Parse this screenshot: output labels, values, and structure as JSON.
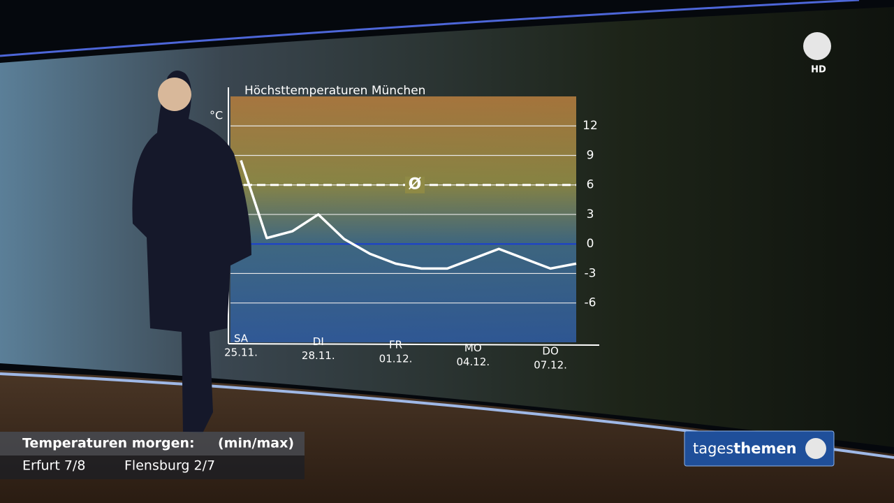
{
  "chart_data": {
    "type": "line",
    "title": "Höchsttemperaturen München",
    "y_unit": "°C",
    "weekdays": [
      "SA",
      null,
      null,
      "DI",
      null,
      null,
      "FR",
      null,
      null,
      "MO",
      null,
      null,
      "DO",
      null
    ],
    "categories": [
      "25.11.",
      null,
      null,
      "28.11.",
      null,
      null,
      "01.12.",
      null,
      null,
      "04.12.",
      null,
      null,
      "07.12.",
      null
    ],
    "values": [
      8.5,
      0.6,
      1.3,
      3,
      0.5,
      -1,
      -2,
      -2.5,
      -2.5,
      -1.5,
      -0.5,
      -1.5,
      -2.5,
      -2
    ],
    "color": "#ffffff",
    "ylim": [
      -10,
      15
    ],
    "yticks": [
      -6,
      -3,
      0,
      3,
      6,
      9,
      12
    ],
    "grid": true,
    "mean": 6,
    "mean_label": "Ø"
  },
  "logo": {
    "label": "HD"
  },
  "ticker": {
    "heading": "Temperaturen morgen:",
    "note": "(min/max)",
    "items": [
      "Erfurt 7/8",
      "Flensburg 2/7"
    ]
  },
  "brand": {
    "light": "tages",
    "bold": "themen"
  }
}
